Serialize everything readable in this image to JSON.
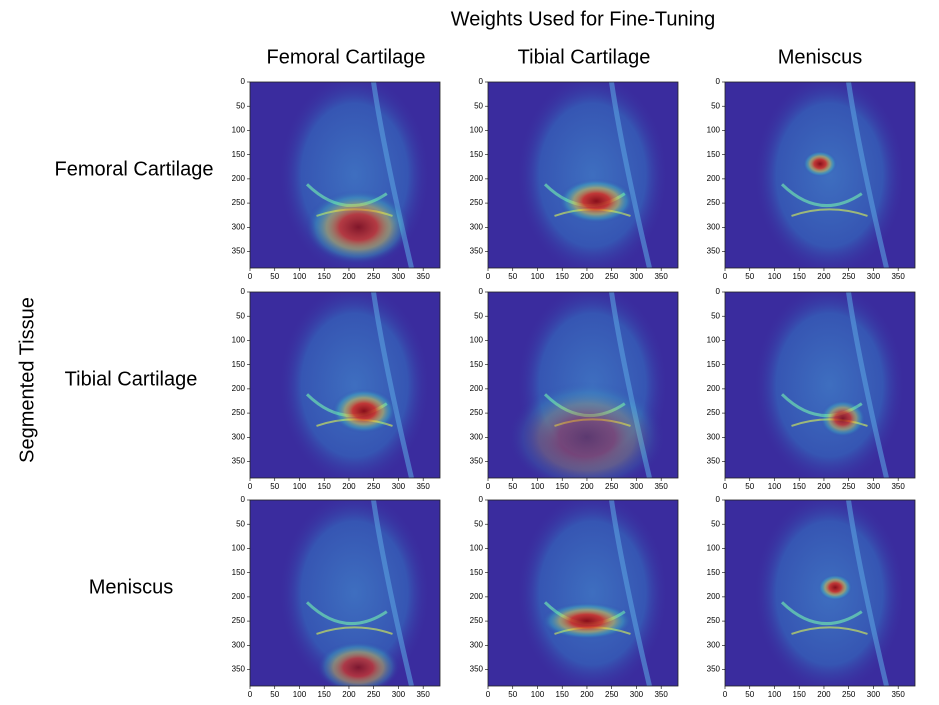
{
  "title": "Weights Used for Fine-Tuning",
  "row_axis_title": "Segmented Tissue",
  "columns": [
    "Femoral Cartilage",
    "Tibial Cartilage",
    "Meniscus"
  ],
  "rows": [
    "Femoral Cartilage",
    "Tibial Cartilage",
    "Meniscus"
  ],
  "axes": {
    "xlim": [
      0,
      384
    ],
    "ylim": [
      0,
      384
    ],
    "xticks": [
      0,
      50,
      100,
      150,
      200,
      250,
      300,
      350
    ],
    "yticks": [
      0,
      50,
      100,
      150,
      200,
      250,
      300,
      350
    ]
  }
}
